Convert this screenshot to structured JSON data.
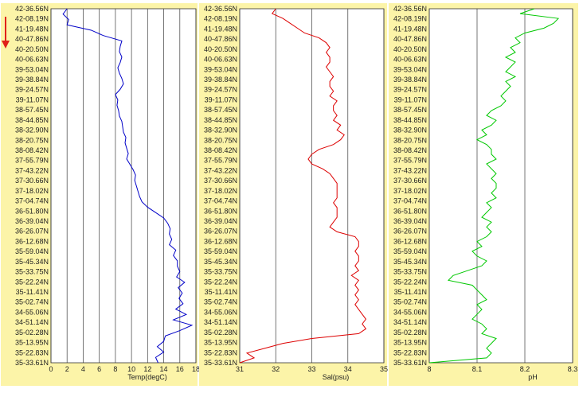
{
  "page": {
    "background": "#ffffff",
    "panel_background": "#fcf4a8",
    "grid_color": "#555555",
    "direction_arrow_color": "#e0201a",
    "direction_arrow_icon": "red-down-arrow-icon"
  },
  "chart_data": [
    {
      "type": "line",
      "xlabel": "Temp(degC)",
      "ylabel": "",
      "xlim": [
        0,
        18
      ],
      "xticks": [
        "0",
        "2",
        "4",
        "6",
        "8",
        "10",
        "12",
        "14",
        "16",
        "18"
      ],
      "yticks": [
        "42-36.56N",
        "42-08.19N",
        "41-19.48N",
        "40-47.86N",
        "40-20.50N",
        "40-06.63N",
        "39-53.04N",
        "39-38.84N",
        "39-24.57N",
        "39-11.07N",
        "38-57.45N",
        "38-44.85N",
        "38-32.90N",
        "38-20.75N",
        "38-08.42N",
        "37-55.79N",
        "37-43.22N",
        "37-30.66N",
        "37-18.02N",
        "37-04.74N",
        "36-51.80N",
        "36-39.04N",
        "36-26.07N",
        "36-12.68N",
        "35-59.04N",
        "35-45.34N",
        "35-33.75N",
        "35-22.24N",
        "35-11.41N",
        "35-02.74N",
        "34-55.06N",
        "34-51.14N",
        "35-02.28N",
        "35-13.95N",
        "35-22.83N",
        "35-33.61N"
      ],
      "color": "#0000c8",
      "series": [
        {
          "values": [
            2.0,
            1.5,
            2.2,
            2.0,
            5.0,
            6.5,
            8.8,
            8.6,
            8.5,
            8.8,
            8.6,
            8.3,
            8.5,
            8.8,
            9.0,
            8.6,
            8.0,
            8.3,
            8.2,
            8.4,
            8.5,
            8.8,
            8.9,
            9.0,
            9.3,
            9.2,
            9.4,
            9.6,
            9.4,
            9.8,
            10.2,
            10.5,
            10.4,
            10.6,
            10.8,
            11.0,
            11.3,
            12.0,
            13.0,
            14.0,
            14.5,
            14.8,
            14.7,
            15.0,
            14.7,
            15.5,
            15.2,
            15.7,
            15.7,
            16.0,
            15.6,
            16.6,
            15.8,
            16.3,
            15.9,
            16.4,
            15.5,
            16.8,
            15.2,
            17.5,
            16.0,
            14.2,
            14.0,
            13.2,
            14.0,
            13.0,
            13.3
          ]
        }
      ]
    },
    {
      "type": "line",
      "xlabel": "Sal(psu)",
      "ylabel": "",
      "xlim": [
        31,
        35
      ],
      "xticks": [
        "31",
        "32",
        "33",
        "34",
        "35"
      ],
      "yticks": [
        "42-36.56N",
        "42-08.19N",
        "41-19.48N",
        "40-47.86N",
        "40-20.50N",
        "40-06.63N",
        "39-53.04N",
        "39-38.84N",
        "39-24.57N",
        "39-11.07N",
        "38-57.45N",
        "38-44.85N",
        "38-32.90N",
        "38-20.75N",
        "38-08.42N",
        "37-55.79N",
        "37-43.22N",
        "37-30.66N",
        "37-18.02N",
        "37-04.74N",
        "36-51.80N",
        "36-39.04N",
        "36-26.07N",
        "36-12.68N",
        "35-59.04N",
        "35-45.34N",
        "35-33.75N",
        "35-22.24N",
        "35-11.41N",
        "35-02.74N",
        "34-55.06N",
        "34-51.14N",
        "35-02.28N",
        "35-13.95N",
        "35-22.83N",
        "35-33.61N"
      ],
      "color": "#dd0000",
      "series": [
        {
          "values": [
            32.0,
            31.9,
            32.2,
            32.4,
            32.6,
            32.8,
            33.2,
            33.4,
            33.5,
            33.4,
            33.5,
            33.5,
            33.4,
            33.5,
            33.6,
            33.5,
            33.5,
            33.6,
            33.5,
            33.7,
            33.6,
            33.6,
            33.7,
            33.6,
            33.8,
            33.7,
            33.9,
            33.8,
            33.6,
            33.2,
            33.0,
            32.9,
            33.0,
            33.3,
            33.5,
            33.6,
            33.7,
            33.7,
            33.7,
            33.7,
            33.6,
            33.7,
            33.7,
            33.7,
            33.6,
            33.5,
            33.7,
            34.2,
            34.3,
            34.3,
            34.2,
            34.3,
            34.3,
            34.2,
            34.3,
            34.1,
            34.3,
            34.2,
            34.3,
            34.2,
            34.3,
            34.2,
            34.3,
            34.4,
            34.5,
            34.4,
            34.5,
            34.3,
            33.0,
            32.2,
            31.7,
            31.2,
            31.4,
            31.0
          ]
        }
      ]
    },
    {
      "type": "line",
      "xlabel": "pH",
      "ylabel": "",
      "xlim": [
        8,
        8.3
      ],
      "xticks": [
        "8",
        "8.1",
        "8.2",
        "8.3"
      ],
      "yticks": [
        "42-36.56N",
        "42-08.19N",
        "41-19.48N",
        "40-47.86N",
        "40-20.50N",
        "40-06.63N",
        "39-53.04N",
        "39-38.84N",
        "39-24.57N",
        "39-11.07N",
        "38-57.45N",
        "38-44.85N",
        "38-32.90N",
        "38-20.75N",
        "38-08.42N",
        "37-55.79N",
        "37-43.22N",
        "37-30.66N",
        "37-18.02N",
        "37-04.74N",
        "36-51.80N",
        "36-39.04N",
        "36-26.07N",
        "36-12.68N",
        "35-59.04N",
        "35-45.34N",
        "35-33.75N",
        "35-22.24N",
        "35-11.41N",
        "35-02.74N",
        "34-55.06N",
        "34-51.14N",
        "35-02.28N",
        "35-13.95N",
        "35-22.83N",
        "35-33.61N"
      ],
      "color": "#00c800",
      "series": [
        {
          "values": [
            8.22,
            8.19,
            8.27,
            8.26,
            8.24,
            8.2,
            8.18,
            8.19,
            8.17,
            8.18,
            8.16,
            8.18,
            8.17,
            8.16,
            8.18,
            8.16,
            8.17,
            8.16,
            8.15,
            8.16,
            8.15,
            8.13,
            8.12,
            8.14,
            8.13,
            8.11,
            8.12,
            8.1,
            8.12,
            8.13,
            8.13,
            8.14,
            8.12,
            8.13,
            8.14,
            8.13,
            8.14,
            8.14,
            8.13,
            8.14,
            8.12,
            8.13,
            8.12,
            8.11,
            8.13,
            8.12,
            8.13,
            8.12,
            8.1,
            8.11,
            8.09,
            8.1,
            8.12,
            8.11,
            8.08,
            8.05,
            8.04,
            8.09,
            8.1,
            8.11,
            8.12,
            8.1,
            8.11,
            8.1,
            8.09,
            8.11,
            8.12,
            8.11,
            8.14,
            8.13,
            8.12,
            8.13,
            8.12,
            8.0
          ]
        }
      ]
    }
  ]
}
